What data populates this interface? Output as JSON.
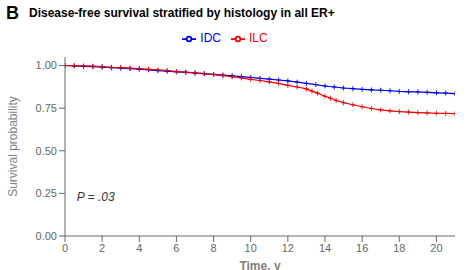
{
  "chart_data": {
    "type": "line",
    "title": "Disease-free survival stratified by histology in all ER+",
    "panel_label": "B",
    "x_label": "Time, y",
    "y_label": "Survival probability",
    "annotation": "P = .03",
    "xlim": [
      0,
      21
    ],
    "ylim": [
      0.0,
      1.05
    ],
    "xticks": [
      0,
      2,
      4,
      6,
      8,
      10,
      12,
      14,
      16,
      18,
      20
    ],
    "yticks": [
      {
        "value": 0,
        "label": "0.00"
      },
      0.25,
      {
        "value": 0.5,
        "label": "0.50"
      },
      0.75,
      {
        "value": 1,
        "label": "1.00"
      }
    ],
    "legend": "top",
    "marker": "plus",
    "series": [
      {
        "name": "IDC",
        "color": "#0000ee",
        "x": [
          0,
          0.5,
          1,
          1.5,
          2,
          2.5,
          3,
          3.5,
          4,
          4.5,
          5,
          5.5,
          6,
          6.5,
          7,
          7.5,
          8,
          8.5,
          9,
          9.5,
          10,
          10.5,
          11,
          11.5,
          12,
          12.5,
          13,
          13.5,
          14,
          14.5,
          15,
          15.5,
          16,
          16.5,
          17,
          17.5,
          18,
          18.5,
          19,
          19.5,
          20,
          20.5,
          21
        ],
        "values": [
          1.0,
          0.998,
          0.995,
          0.993,
          0.99,
          0.987,
          0.985,
          0.982,
          0.978,
          0.975,
          0.97,
          0.967,
          0.963,
          0.96,
          0.956,
          0.952,
          0.948,
          0.944,
          0.94,
          0.935,
          0.93,
          0.925,
          0.92,
          0.915,
          0.91,
          0.903,
          0.895,
          0.888,
          0.88,
          0.874,
          0.868,
          0.864,
          0.86,
          0.857,
          0.855,
          0.852,
          0.848,
          0.846,
          0.845,
          0.843,
          0.84,
          0.838,
          0.835
        ]
      },
      {
        "name": "ILC",
        "color": "#ee0000",
        "x": [
          0,
          0.5,
          1,
          1.5,
          2,
          2.5,
          3,
          3.5,
          4,
          4.5,
          5,
          5.5,
          6,
          6.5,
          7,
          7.5,
          8,
          8.5,
          9,
          9.5,
          10,
          10.5,
          11,
          11.5,
          12,
          12.5,
          13,
          13.3,
          13.6,
          14,
          14.3,
          14.6,
          15,
          15.5,
          16,
          16.5,
          17,
          17.5,
          18,
          18.5,
          19,
          19.5,
          20,
          20.5,
          21
        ],
        "values": [
          1.0,
          0.999,
          0.998,
          0.996,
          0.994,
          0.99,
          0.988,
          0.985,
          0.982,
          0.978,
          0.974,
          0.97,
          0.965,
          0.961,
          0.957,
          0.952,
          0.947,
          0.941,
          0.934,
          0.927,
          0.919,
          0.912,
          0.904,
          0.895,
          0.884,
          0.874,
          0.863,
          0.85,
          0.838,
          0.82,
          0.808,
          0.795,
          0.782,
          0.77,
          0.758,
          0.748,
          0.74,
          0.734,
          0.73,
          0.727,
          0.724,
          0.722,
          0.72,
          0.719,
          0.718
        ]
      }
    ]
  }
}
